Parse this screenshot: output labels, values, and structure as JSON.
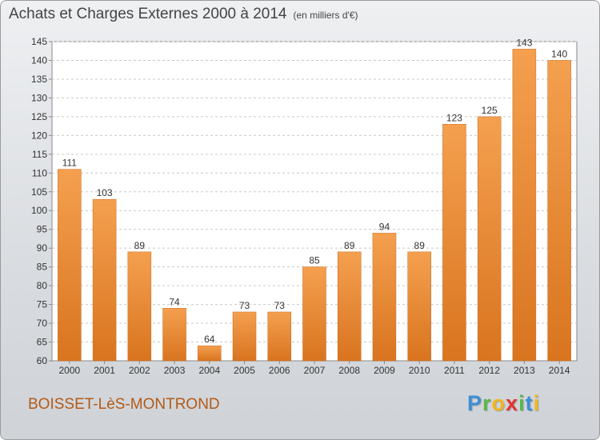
{
  "header": {
    "title": "Achats et Charges Externes 2000 à 2014",
    "subtitle": "(en milliers d'€)"
  },
  "footer": {
    "town": "BOISSET-LèS-MONTROND",
    "logo_letters": [
      {
        "char": "P",
        "color": "#3d8fd6"
      },
      {
        "char": "r",
        "color": "#58b947"
      },
      {
        "char": "o",
        "color": "#f3b51b"
      },
      {
        "char": "x",
        "color": "#e3342f"
      },
      {
        "char": "i",
        "color": "#58b947"
      },
      {
        "char": "t",
        "color": "#3d8fd6"
      },
      {
        "char": "i",
        "color": "#f3b51b"
      }
    ]
  },
  "chart_data": {
    "type": "bar",
    "title": "Achats et Charges Externes 2000 à 2014",
    "subtitle": "(en milliers d'€)",
    "categories": [
      "2000",
      "2001",
      "2002",
      "2003",
      "2004",
      "2005",
      "2006",
      "2007",
      "2008",
      "2009",
      "2010",
      "2011",
      "2012",
      "2013",
      "2014"
    ],
    "values": [
      111,
      103,
      89,
      74,
      64,
      73,
      73,
      85,
      89,
      94,
      89,
      123,
      125,
      143,
      140
    ],
    "ylim": [
      60,
      145
    ],
    "yticks": [
      60,
      65,
      70,
      75,
      80,
      85,
      90,
      95,
      100,
      105,
      110,
      115,
      120,
      125,
      130,
      135,
      140,
      145
    ],
    "grid": true,
    "xlabel": "",
    "ylabel": "",
    "colors": {
      "bar": "#f4a04f",
      "bar_dark": "#d9741f",
      "grid": "#c8c8c8",
      "axis": "#888888",
      "text": "#333333"
    }
  }
}
